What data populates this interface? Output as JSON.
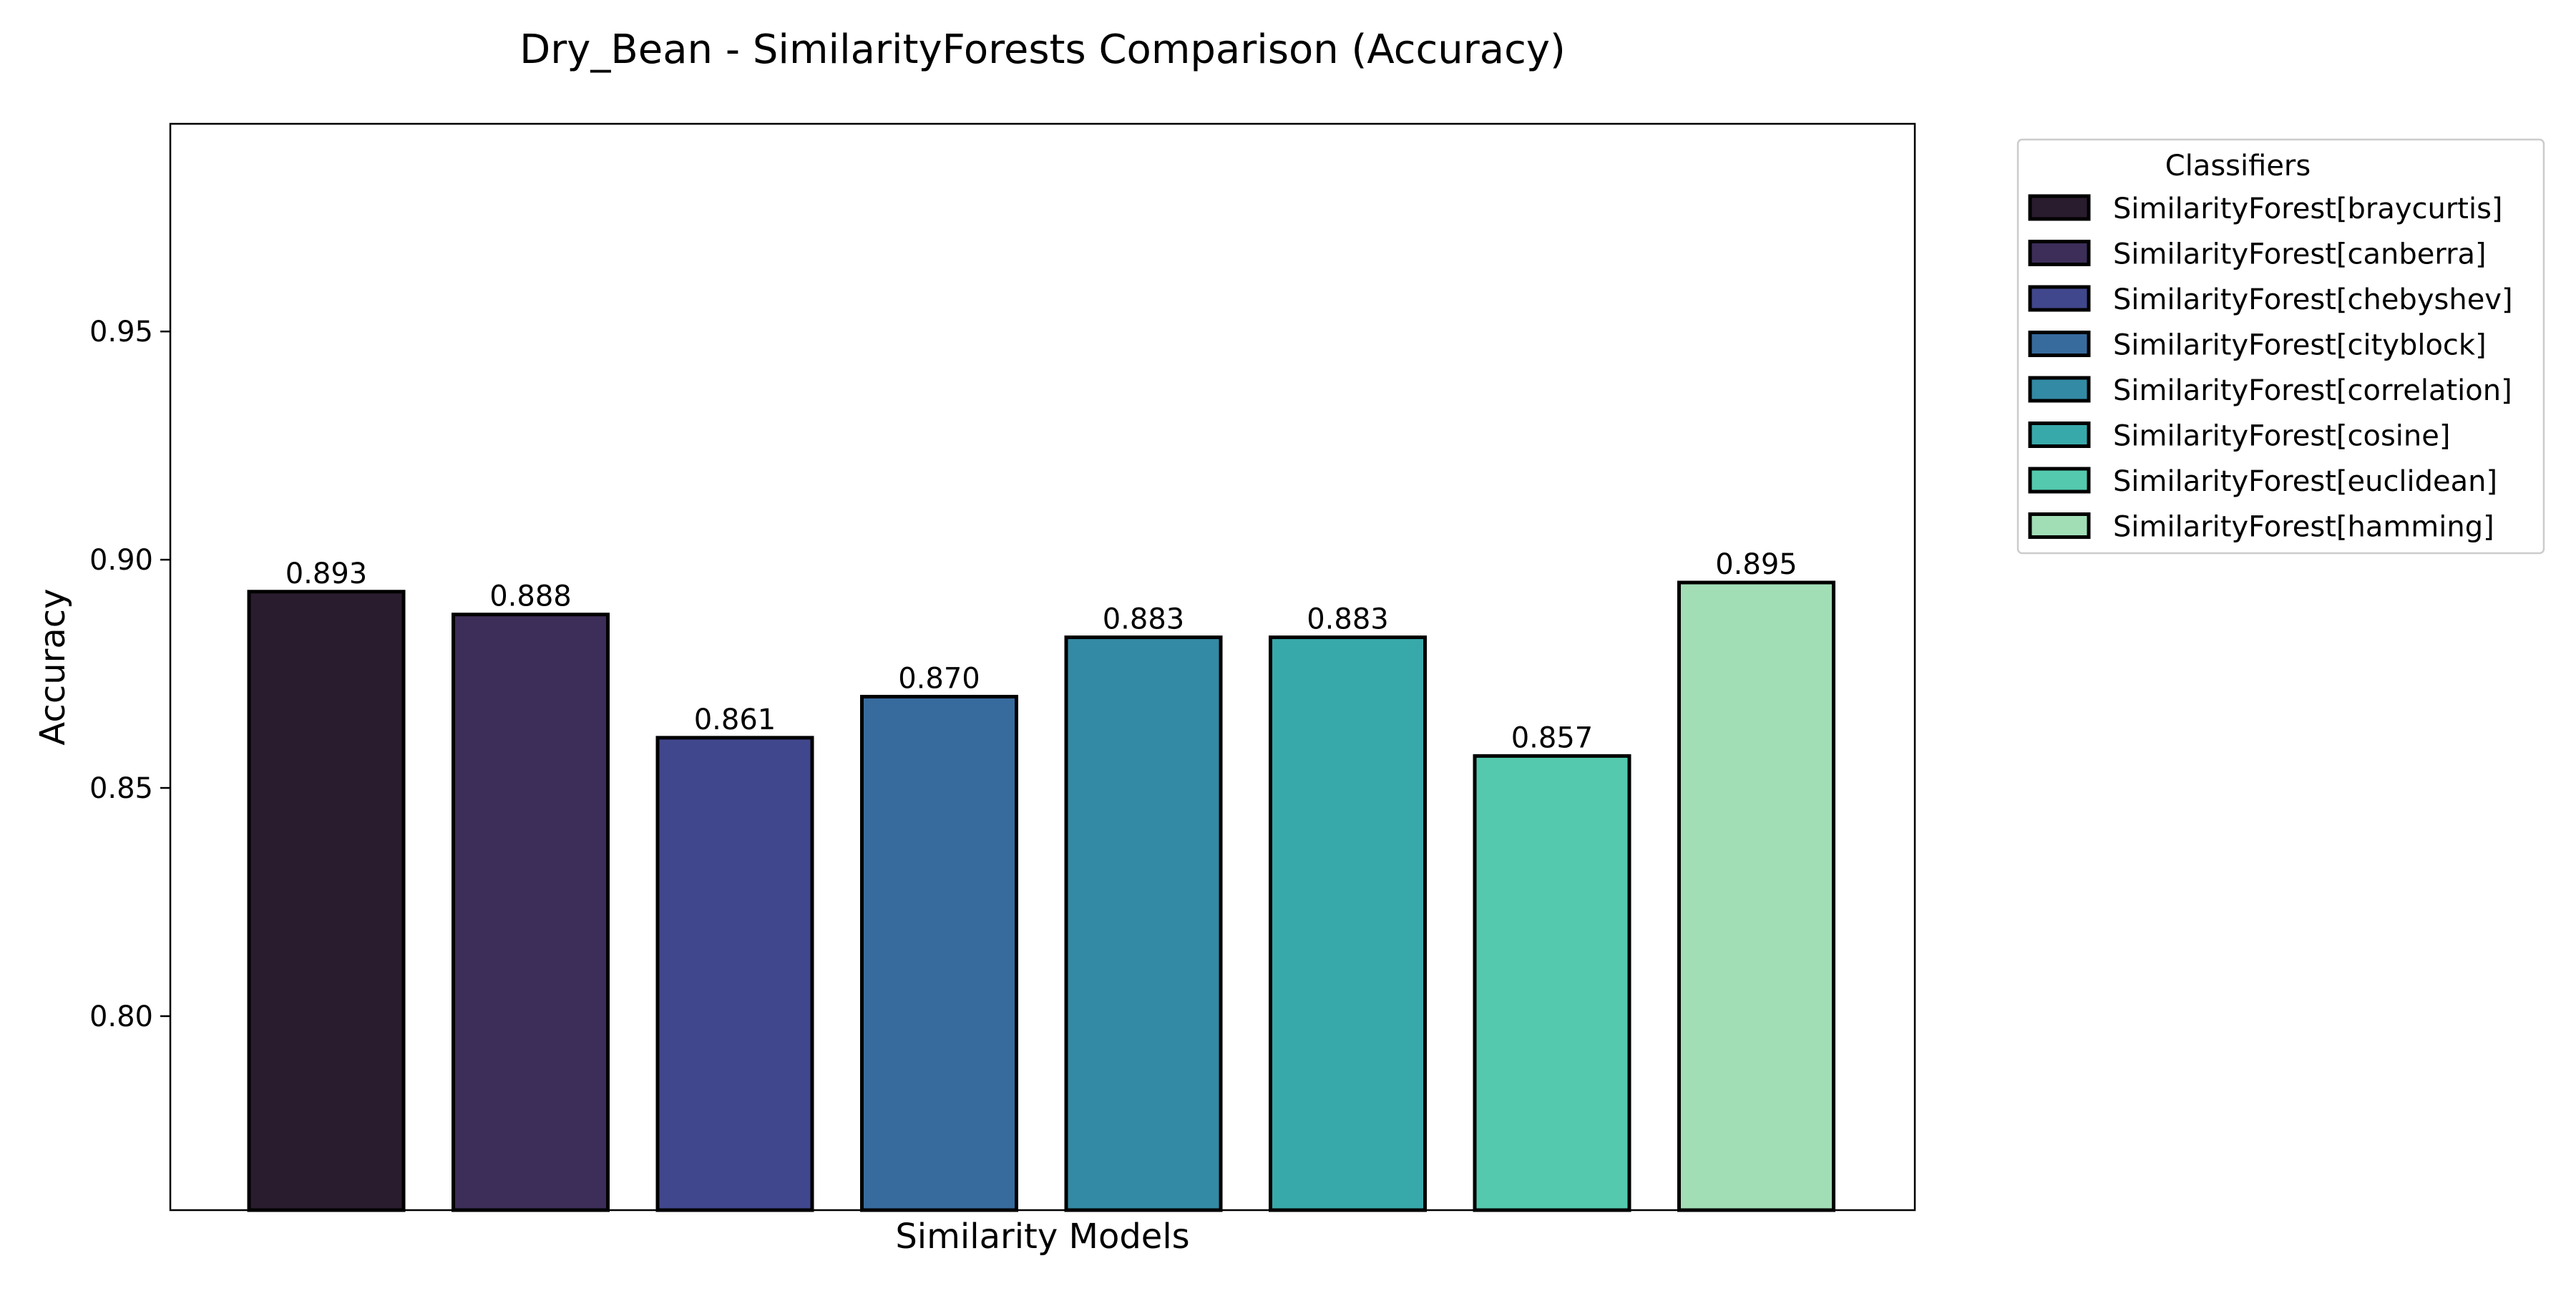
{
  "chart_data": {
    "type": "bar",
    "title": "Dry_Bean - SimilarityForests Comparison (Accuracy)",
    "xlabel": "Similarity Models",
    "ylabel": "Accuracy",
    "ylim": [
      0.7575,
      0.9955
    ],
    "yticks": [
      0.8,
      0.85,
      0.9,
      0.95
    ],
    "ytick_labels": [
      "0.80",
      "0.85",
      "0.90",
      "0.95"
    ],
    "grid": false,
    "legend": {
      "title": "Classifiers",
      "placement": "outside-top-right"
    },
    "categories": [
      "SimilarityForest[braycurtis]",
      "SimilarityForest[canberra]",
      "SimilarityForest[chebyshev]",
      "SimilarityForest[cityblock]",
      "SimilarityForest[correlation]",
      "SimilarityForest[cosine]",
      "SimilarityForest[euclidean]",
      "SimilarityForest[hamming]"
    ],
    "values": [
      0.893,
      0.888,
      0.861,
      0.87,
      0.883,
      0.883,
      0.857,
      0.895
    ],
    "value_labels": [
      "0.893",
      "0.888",
      "0.861",
      "0.870",
      "0.883",
      "0.883",
      "0.857",
      "0.895"
    ],
    "colors": [
      "#2a1c2f",
      "#3c2e58",
      "#41478c",
      "#376b9e",
      "#338aa4",
      "#38a9aa",
      "#54c9ae",
      "#a1deb6"
    ],
    "edge_color": "#000000"
  }
}
